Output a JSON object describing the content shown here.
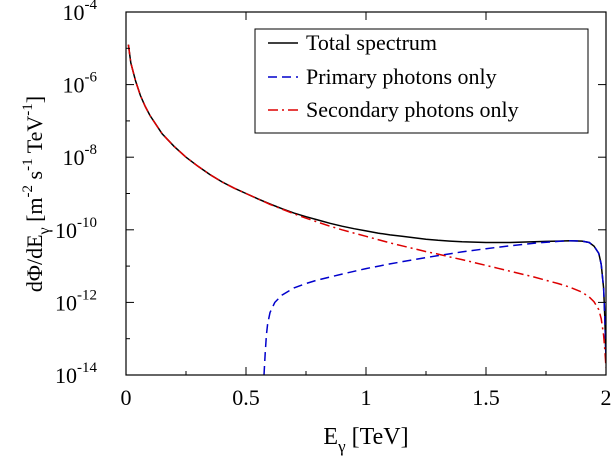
{
  "chart_data": {
    "type": "line",
    "title": "",
    "xlabel": {
      "main": "E",
      "sub": "γ",
      "unit": " [TeV]"
    },
    "ylabel": {
      "parts": [
        {
          "t": "dΦ/dE"
        },
        {
          "t": "γ",
          "sub": true
        },
        {
          "t": " [m"
        },
        {
          "t": "-2",
          "sup": true
        },
        {
          "t": " s"
        },
        {
          "t": "-1",
          "sup": true
        },
        {
          "t": " TeV"
        },
        {
          "t": "-1",
          "sup": true
        },
        {
          "t": "]"
        }
      ]
    },
    "xlim": [
      0,
      2
    ],
    "ylim_log10": [
      -14,
      -4
    ],
    "y_scale": "log",
    "x_ticks": [
      0,
      0.5,
      1,
      1.5,
      2
    ],
    "x_tick_labels": [
      "0",
      "0.5",
      "1",
      "1.5",
      "2"
    ],
    "y_tick_exponents": [
      -14,
      -12,
      -10,
      -8,
      -6,
      -4
    ],
    "y_tick_base": "10",
    "legend_position": "top-right",
    "series": [
      {
        "name": "Total spectrum",
        "color": "#000000",
        "dash": "solid",
        "x": [
          0.01,
          0.02,
          0.04,
          0.06,
          0.08,
          0.1,
          0.15,
          0.2,
          0.25,
          0.3,
          0.35,
          0.4,
          0.45,
          0.5,
          0.55,
          0.6,
          0.65,
          0.7,
          0.75,
          0.8,
          0.85,
          0.9,
          0.95,
          1.0,
          1.05,
          1.1,
          1.15,
          1.2,
          1.25,
          1.3,
          1.35,
          1.4,
          1.45,
          1.5,
          1.55,
          1.6,
          1.65,
          1.7,
          1.75,
          1.8,
          1.85,
          1.9,
          1.93,
          1.95,
          1.97,
          1.98,
          1.99,
          1.995,
          2.0
        ],
        "log10_y": [
          -4.9,
          -5.4,
          -5.9,
          -6.3,
          -6.6,
          -6.85,
          -7.35,
          -7.7,
          -8.0,
          -8.25,
          -8.48,
          -8.68,
          -8.85,
          -9.0,
          -9.15,
          -9.29,
          -9.42,
          -9.54,
          -9.64,
          -9.73,
          -9.82,
          -9.9,
          -9.97,
          -10.03,
          -10.09,
          -10.14,
          -10.18,
          -10.22,
          -10.26,
          -10.29,
          -10.31,
          -10.33,
          -10.34,
          -10.35,
          -10.35,
          -10.35,
          -10.34,
          -10.33,
          -10.32,
          -10.31,
          -10.3,
          -10.31,
          -10.35,
          -10.45,
          -10.65,
          -10.95,
          -11.6,
          -12.4,
          -13.6
        ]
      },
      {
        "name": "Primary photons only",
        "color": "#0000cc",
        "dash": "dashed",
        "x": [
          0.575,
          0.58,
          0.585,
          0.59,
          0.6,
          0.62,
          0.65,
          0.7,
          0.75,
          0.8,
          0.9,
          1.0,
          1.1,
          1.2,
          1.3,
          1.4,
          1.5,
          1.6,
          1.7,
          1.8,
          1.85,
          1.9,
          1.93,
          1.95,
          1.97,
          1.98,
          1.99,
          1.995,
          2.0
        ],
        "log10_y": [
          -14.0,
          -13.4,
          -12.9,
          -12.6,
          -12.28,
          -12.0,
          -11.8,
          -11.6,
          -11.48,
          -11.38,
          -11.22,
          -11.07,
          -10.94,
          -10.82,
          -10.71,
          -10.61,
          -10.52,
          -10.44,
          -10.37,
          -10.32,
          -10.3,
          -10.31,
          -10.35,
          -10.45,
          -10.65,
          -10.95,
          -11.6,
          -12.4,
          -13.6
        ]
      },
      {
        "name": "Secondary photons only",
        "color": "#dd0000",
        "dash": "dashdot",
        "x": [
          0.01,
          0.02,
          0.04,
          0.06,
          0.08,
          0.1,
          0.15,
          0.2,
          0.25,
          0.3,
          0.35,
          0.4,
          0.45,
          0.5,
          0.55,
          0.6,
          0.65,
          0.7,
          0.75,
          0.8,
          0.85,
          0.9,
          0.95,
          1.0,
          1.05,
          1.1,
          1.15,
          1.2,
          1.25,
          1.3,
          1.35,
          1.4,
          1.45,
          1.5,
          1.55,
          1.6,
          1.65,
          1.7,
          1.75,
          1.8,
          1.85,
          1.9,
          1.93,
          1.95,
          1.97,
          1.98,
          1.99,
          1.995,
          2.0
        ],
        "log10_y": [
          -4.9,
          -5.4,
          -5.9,
          -6.3,
          -6.6,
          -6.85,
          -7.35,
          -7.7,
          -8.0,
          -8.25,
          -8.48,
          -8.68,
          -8.85,
          -9.0,
          -9.15,
          -9.3,
          -9.43,
          -9.56,
          -9.68,
          -9.79,
          -9.9,
          -10.0,
          -10.09,
          -10.18,
          -10.27,
          -10.36,
          -10.44,
          -10.52,
          -10.6,
          -10.67,
          -10.75,
          -10.82,
          -10.9,
          -10.98,
          -11.06,
          -11.14,
          -11.22,
          -11.3,
          -11.39,
          -11.48,
          -11.58,
          -11.72,
          -11.85,
          -11.98,
          -12.2,
          -12.45,
          -12.9,
          -13.3,
          -13.8
        ]
      }
    ]
  }
}
